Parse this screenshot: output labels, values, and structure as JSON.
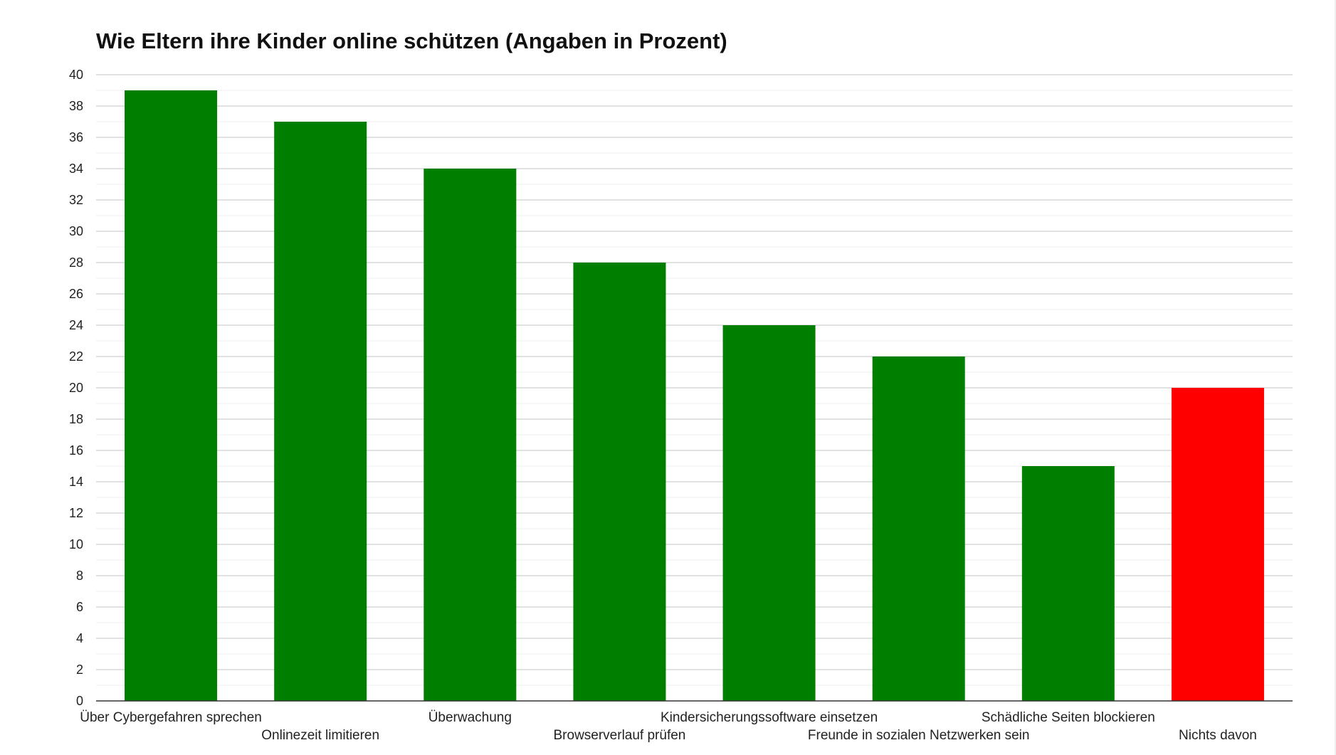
{
  "chart_data": {
    "type": "bar",
    "title": "Wie Eltern ihre Kinder online schützen (Angaben in Prozent)",
    "xlabel": "",
    "ylabel": "",
    "ylim": [
      0,
      40
    ],
    "yticks": [
      0,
      2,
      4,
      6,
      8,
      10,
      12,
      14,
      16,
      18,
      20,
      22,
      24,
      26,
      28,
      30,
      32,
      34,
      36,
      38,
      40
    ],
    "grid": true,
    "categories": [
      "Über Cybergefahren sprechen",
      "Onlinezeit limitieren",
      "Überwachung",
      "Browserverlauf prüfen",
      "Kindersicherungssoftware einsetzen",
      "Freunde in sozialen Netzwerken sein",
      "Schädliche Seiten blockieren",
      "Nichts davon"
    ],
    "values": [
      39,
      37,
      34,
      28,
      24,
      22,
      15,
      20
    ],
    "colors": [
      "#007e00",
      "#007e00",
      "#007e00",
      "#007e00",
      "#007e00",
      "#007e00",
      "#007e00",
      "#ff0000"
    ]
  }
}
